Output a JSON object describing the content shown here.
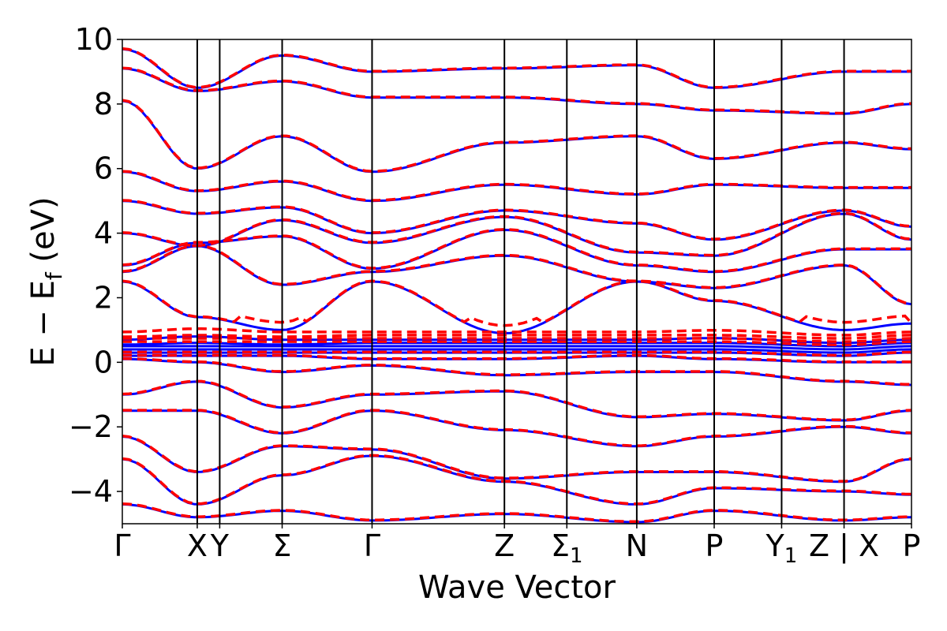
{
  "chart_data": {
    "type": "line",
    "title": "",
    "xlabel": "Wave Vector",
    "ylabel": "E − E",
    "ylabel_sub": "f",
    "ylabel_unit": " (eV)",
    "ylim": [
      -5,
      10
    ],
    "yticks": [
      {
        "value": -4,
        "label": "−4"
      },
      {
        "value": -2,
        "label": "−2"
      },
      {
        "value": 0,
        "label": "0"
      },
      {
        "value": 2,
        "label": "2"
      },
      {
        "value": 4,
        "label": "4"
      },
      {
        "value": 6,
        "label": "6"
      },
      {
        "value": 8,
        "label": "8"
      },
      {
        "value": 10,
        "label": "10"
      }
    ],
    "xlim": [
      0,
      12.8
    ],
    "high_symmetry_points": [
      {
        "x": 0.0,
        "label": "Γ",
        "sub": ""
      },
      {
        "x": 1.5,
        "label": "X",
        "sub": ""
      },
      {
        "x": 1.95,
        "label": "Y",
        "sub": ""
      },
      {
        "x": 3.2,
        "label": "Σ",
        "sub": ""
      },
      {
        "x": 5.0,
        "label": "Γ",
        "sub": ""
      },
      {
        "x": 7.65,
        "label": "Z",
        "sub": ""
      },
      {
        "x": 8.9,
        "label": "Σ",
        "sub": "1"
      },
      {
        "x": 10.3,
        "label": "N",
        "sub": ""
      },
      {
        "x": 11.85,
        "label": "P",
        "sub": ""
      },
      {
        "x": 13.2,
        "label": "Y",
        "sub": "1"
      },
      {
        "x": 14.45,
        "label": "Z | X",
        "sub": ""
      },
      {
        "x": 15.8,
        "label": "P",
        "sub": ""
      }
    ],
    "colors": {
      "series_a": "#0000ff",
      "series_b": "#ff0000",
      "divider": "#000000"
    },
    "bands": [
      {
        "x": [
          0,
          1.5,
          3.2,
          5.0,
          7.65,
          10.3,
          11.85,
          14.45,
          15.8
        ],
        "y": [
          -4.4,
          -4.8,
          -4.6,
          -4.9,
          -4.7,
          -4.95,
          -4.6,
          -4.9,
          -4.8
        ]
      },
      {
        "x": [
          0,
          1.5,
          3.2,
          5.0,
          7.65,
          10.3,
          11.85,
          14.45,
          15.8
        ],
        "y": [
          -3.0,
          -4.4,
          -3.5,
          -2.9,
          -3.7,
          -4.4,
          -3.9,
          -4.0,
          -4.1
        ]
      },
      {
        "x": [
          0,
          1.5,
          3.2,
          5.0,
          7.65,
          10.3,
          11.85,
          14.45,
          15.8
        ],
        "y": [
          -2.3,
          -3.4,
          -2.6,
          -2.7,
          -3.6,
          -3.4,
          -3.4,
          -3.7,
          -3.0
        ]
      },
      {
        "x": [
          0,
          1.5,
          3.2,
          5.0,
          7.65,
          10.3,
          11.85,
          14.45,
          15.8
        ],
        "y": [
          -1.5,
          -1.5,
          -2.2,
          -1.5,
          -2.1,
          -2.6,
          -2.3,
          -2.0,
          -2.2
        ]
      },
      {
        "x": [
          0,
          1.5,
          3.2,
          5.0,
          7.65,
          10.3,
          11.85,
          14.45,
          15.8
        ],
        "y": [
          -1.0,
          -0.6,
          -1.4,
          -1.0,
          -0.9,
          -1.7,
          -1.6,
          -1.8,
          -1.5
        ]
      },
      {
        "x": [
          0,
          1.5,
          3.2,
          5.0,
          7.65,
          10.3,
          11.85,
          14.45,
          15.8
        ],
        "y": [
          0.1,
          0.0,
          -0.3,
          -0.1,
          -0.4,
          -0.3,
          -0.3,
          -0.6,
          -0.7
        ]
      },
      {
        "x": [
          0,
          1.5,
          3.2,
          5.0,
          7.65,
          10.3,
          11.85,
          14.45,
          15.8
        ],
        "y": [
          0.2,
          0.2,
          0.2,
          0.1,
          0.1,
          0.2,
          0.1,
          0.0,
          0.0
        ]
      },
      {
        "x": [
          0,
          1.5,
          3.2,
          5.0,
          7.65,
          10.3,
          11.85,
          14.45,
          15.8
        ],
        "y": [
          0.3,
          0.3,
          0.3,
          0.3,
          0.3,
          0.3,
          0.3,
          0.2,
          0.3
        ]
      },
      {
        "x": [
          0,
          1.5,
          3.2,
          5.0,
          7.65,
          10.3,
          11.85,
          14.45,
          15.8
        ],
        "y": [
          0.4,
          0.4,
          0.4,
          0.4,
          0.4,
          0.4,
          0.4,
          0.3,
          0.4
        ]
      },
      {
        "x": [
          0,
          1.5,
          3.2,
          5.0,
          7.65,
          10.3,
          11.85,
          14.45,
          15.8
        ],
        "y": [
          0.5,
          0.5,
          0.5,
          0.5,
          0.5,
          0.5,
          0.5,
          0.4,
          0.5
        ]
      },
      {
        "x": [
          0,
          1.5,
          3.2,
          5.0,
          7.65,
          10.3,
          11.85,
          14.45,
          15.8
        ],
        "y": [
          0.55,
          0.6,
          0.55,
          0.6,
          0.6,
          0.6,
          0.6,
          0.5,
          0.6
        ]
      },
      {
        "x": [
          0,
          1.5,
          3.2,
          5.0,
          7.65,
          10.3,
          11.85,
          14.45,
          15.8
        ],
        "y": [
          0.7,
          0.8,
          0.7,
          0.7,
          0.7,
          0.7,
          0.75,
          0.6,
          0.7
        ]
      },
      {
        "x": [
          0,
          1.5,
          3.2,
          5.0,
          7.65,
          10.3,
          11.85,
          14.45,
          15.8
        ],
        "y": [
          2.5,
          1.4,
          1.0,
          2.5,
          0.9,
          2.5,
          1.9,
          1.0,
          1.2
        ]
      },
      {
        "x": [
          0,
          1.5,
          3.2,
          5.0,
          7.65,
          10.3,
          11.85,
          14.45,
          15.8
        ],
        "y": [
          2.8,
          3.6,
          2.4,
          2.8,
          3.3,
          2.5,
          2.3,
          3.0,
          1.8
        ]
      },
      {
        "x": [
          0,
          1.5,
          3.2,
          5.0,
          7.65,
          10.3,
          11.85,
          14.45,
          15.8
        ],
        "y": [
          3.0,
          3.7,
          3.9,
          2.9,
          4.1,
          3.0,
          2.8,
          3.5,
          3.5
        ]
      },
      {
        "x": [
          0,
          1.5,
          3.2,
          5.0,
          7.65,
          10.3,
          11.85,
          14.45,
          15.8
        ],
        "y": [
          4.0,
          3.6,
          4.4,
          3.7,
          4.5,
          3.4,
          3.3,
          4.6,
          3.8
        ]
      },
      {
        "x": [
          0,
          1.5,
          3.2,
          5.0,
          7.65,
          10.3,
          11.85,
          14.45,
          15.8
        ],
        "y": [
          5.0,
          4.6,
          4.8,
          4.0,
          4.7,
          4.3,
          3.8,
          4.7,
          4.2
        ]
      },
      {
        "x": [
          0,
          1.5,
          3.2,
          5.0,
          7.65,
          10.3,
          11.85,
          14.45,
          15.8
        ],
        "y": [
          5.9,
          5.3,
          5.6,
          5.0,
          5.5,
          5.2,
          5.5,
          5.4,
          5.4
        ]
      },
      {
        "x": [
          0,
          1.5,
          3.2,
          5.0,
          7.65,
          10.3,
          11.85,
          14.45,
          15.8
        ],
        "y": [
          8.1,
          6.0,
          7.0,
          5.9,
          6.8,
          7.0,
          6.3,
          6.8,
          6.6
        ]
      },
      {
        "x": [
          0,
          1.5,
          3.2,
          5.0,
          7.65,
          10.3,
          11.85,
          14.45,
          15.8
        ],
        "y": [
          9.1,
          8.4,
          8.7,
          8.2,
          8.2,
          8.0,
          7.8,
          7.7,
          8.0
        ]
      },
      {
        "x": [
          0,
          1.5,
          3.2,
          5.0,
          7.65,
          10.3,
          11.85,
          14.45,
          15.8
        ],
        "y": [
          9.7,
          8.5,
          9.5,
          9.0,
          9.1,
          9.2,
          8.5,
          9.0,
          9.0
        ]
      }
    ],
    "series": [
      {
        "style": "solid",
        "color": "#0000ff",
        "band_offset": 0.0
      },
      {
        "style": "dashed",
        "color": "#ff0000",
        "band_offset": 0.08
      }
    ]
  }
}
